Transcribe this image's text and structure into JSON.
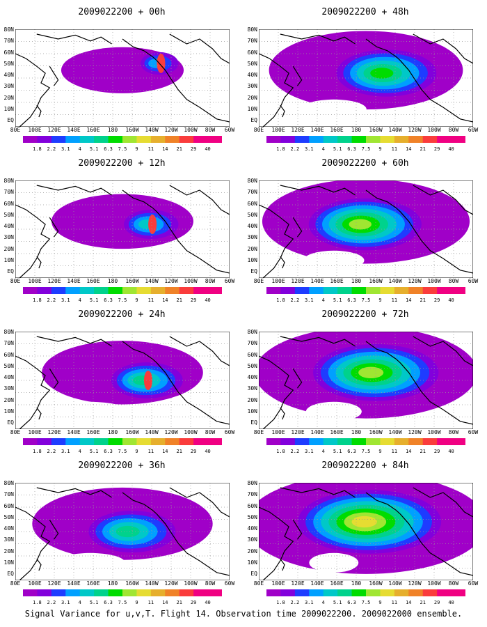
{
  "panels": [
    {
      "title": "2009022200 + 00h",
      "level": 0.08,
      "center": [
        0.68,
        0.35
      ],
      "hot": true
    },
    {
      "title": "2009022200 + 48h",
      "level": 0.45,
      "center": [
        0.6,
        0.45
      ],
      "hot": false
    },
    {
      "title": "2009022200 + 12h",
      "level": 0.18,
      "center": [
        0.64,
        0.45
      ],
      "hot": true
    },
    {
      "title": "2009022200 + 60h",
      "level": 0.52,
      "center": [
        0.5,
        0.45
      ],
      "hot": false
    },
    {
      "title": "2009022200 + 24h",
      "level": 0.28,
      "center": [
        0.62,
        0.5
      ],
      "hot": true
    },
    {
      "title": "2009022200 + 72h",
      "level": 0.6,
      "center": [
        0.55,
        0.42
      ],
      "hot": false
    },
    {
      "title": "2009022200 + 36h",
      "level": 0.38,
      "center": [
        0.55,
        0.5
      ],
      "hot": false
    },
    {
      "title": "2009022200 + 84h",
      "level": 0.7,
      "center": [
        0.52,
        0.4
      ],
      "hot": false
    }
  ],
  "lat_labels": [
    "80N",
    "70N",
    "60N",
    "50N",
    "40N",
    "30N",
    "20N",
    "10N",
    "EQ"
  ],
  "lon_labels": [
    "80E",
    "100E",
    "120E",
    "140E",
    "160E",
    "180",
    "160W",
    "140W",
    "120W",
    "100W",
    "80W",
    "60W"
  ],
  "colorbar": {
    "labels": [
      "1.8",
      "2.2",
      "3.1",
      "4",
      "5.1",
      "6.3",
      "7.5",
      "9",
      "11",
      "14",
      "21",
      "29",
      "40"
    ],
    "colors": [
      "#a000c8",
      "#8200dc",
      "#1e3cff",
      "#00a0ff",
      "#00c8c8",
      "#00d28c",
      "#00dc00",
      "#a0e632",
      "#e6dc32",
      "#e6af2d",
      "#f08228",
      "#fa3c3c",
      "#f00082"
    ]
  },
  "footer": "Signal Variance for u,v,T. Flight 14. Observation time 2009022200. 2009022000 ensemble."
}
